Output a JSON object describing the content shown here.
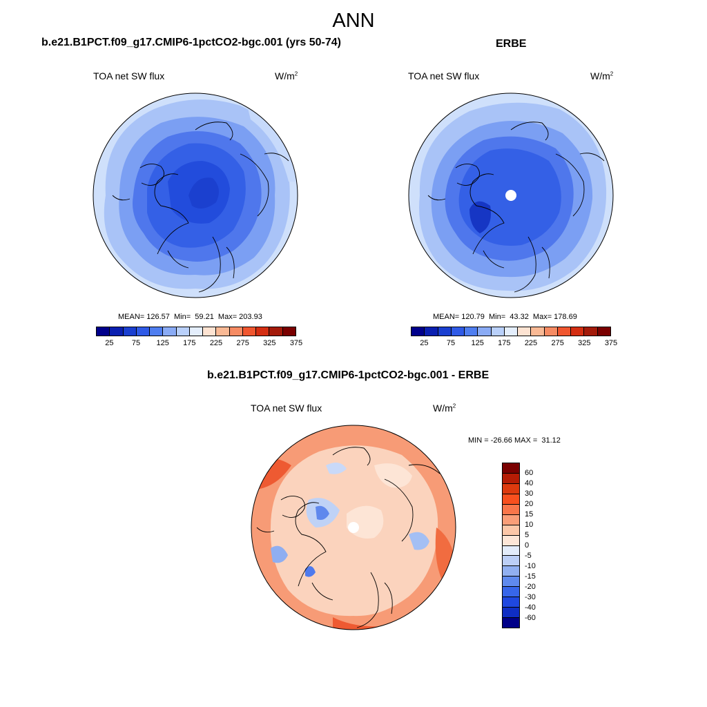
{
  "title": "ANN",
  "panels": {
    "model": {
      "title": "b.e21.B1PCT.f09_g17.CMIP6-1pctCO2-bgc.001 (yrs 50-74)",
      "left_label": "TOA net SW flux",
      "unit": "W/m",
      "unit_sup": "2",
      "stats": "MEAN= 126.57  Min=  59.21  Max= 203.93",
      "mean": 126.57,
      "min": 59.21,
      "max": 203.93
    },
    "obs": {
      "title": "ERBE",
      "left_label": "TOA net SW flux",
      "unit": "W/m",
      "unit_sup": "2",
      "stats": "MEAN= 120.79  Min=  43.32  Max= 178.69",
      "mean": 120.79,
      "min": 43.32,
      "max": 178.69
    },
    "diff": {
      "title": "b.e21.B1PCT.f09_g17.CMIP6-1pctCO2-bgc.001 - ERBE",
      "left_label": "TOA net SW flux",
      "unit": "W/m",
      "unit_sup": "2",
      "stats": "MIN = -26.66 MAX =  31.12",
      "min": -26.66,
      "max": 31.12
    }
  },
  "colorbars": {
    "abs": {
      "colors": [
        "#00008b",
        "#0a1fb0",
        "#1a3fd0",
        "#2f5ae6",
        "#4f7ef0",
        "#8aabf5",
        "#b9d0fa",
        "#e4eefc",
        "#fde3d2",
        "#f9b995",
        "#f68b63",
        "#f0562f",
        "#d42e12",
        "#a31a0a",
        "#7a0000"
      ],
      "tick_labels": [
        "25",
        "75",
        "125",
        "175",
        "225",
        "275",
        "325",
        "375"
      ]
    },
    "diff": {
      "colors": [
        "#7a0000",
        "#b51c05",
        "#dd3a0e",
        "#f8501e",
        "#f9764a",
        "#fa9e78",
        "#fcc7a8",
        "#fde6d7",
        "#e3ecfa",
        "#bccff6",
        "#91b0f1",
        "#5f8aee",
        "#3766ea",
        "#1f48e0",
        "#0f2ec4",
        "#000088"
      ],
      "tick_labels": [
        "60",
        "40",
        "30",
        "20",
        "15",
        "10",
        "5",
        "0",
        "-5",
        "-10",
        "-15",
        "-20",
        "-30",
        "-40",
        "-60"
      ]
    }
  }
}
